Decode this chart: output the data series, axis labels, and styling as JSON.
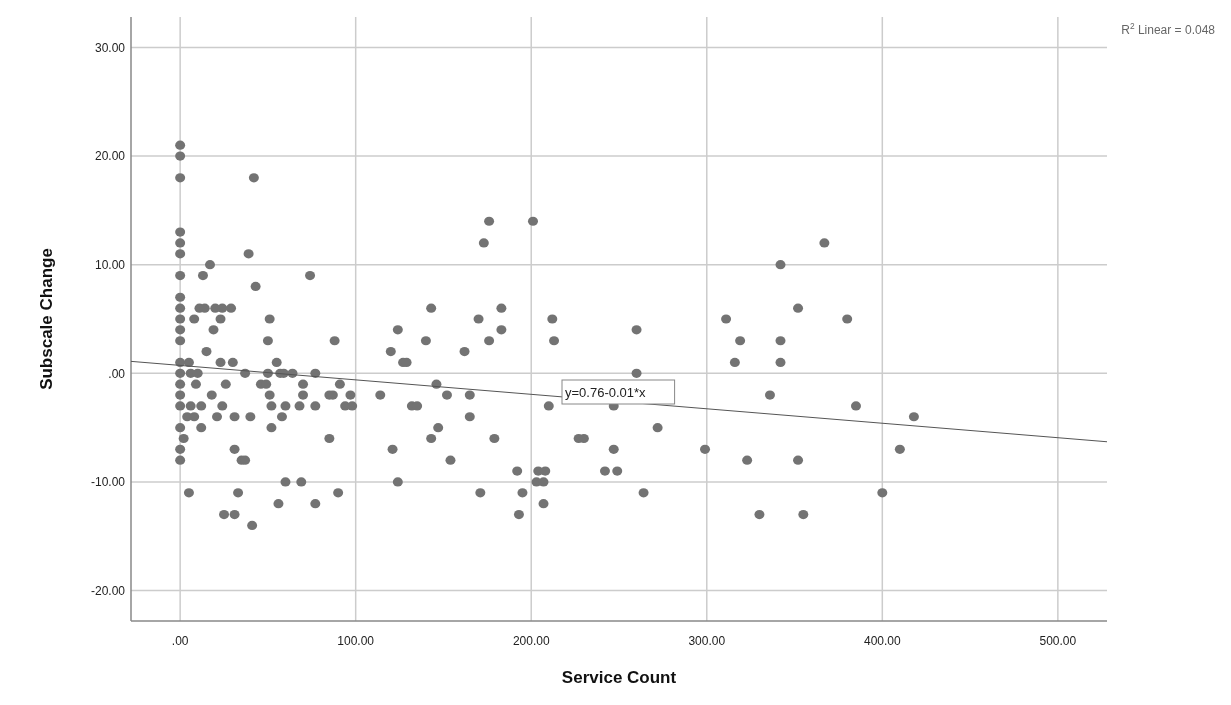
{
  "chart_data": {
    "type": "scatter",
    "xlabel": "Service Count",
    "ylabel": "Subscale Change",
    "xlim": [
      -28,
      528
    ],
    "ylim": [
      -22.8,
      32.8
    ],
    "xticks": [
      {
        "value": 0,
        "label": ".00"
      },
      {
        "value": 100,
        "label": "100.00"
      },
      {
        "value": 200,
        "label": "200.00"
      },
      {
        "value": 300,
        "label": "300.00"
      },
      {
        "value": 400,
        "label": "400.00"
      },
      {
        "value": 500,
        "label": "500.00"
      }
    ],
    "yticks": [
      {
        "value": -20,
        "label": "-20.00"
      },
      {
        "value": -10,
        "label": "-10.00"
      },
      {
        "value": 0,
        "label": ".00"
      },
      {
        "value": 10,
        "label": "10.00"
      },
      {
        "value": 20,
        "label": "20.00"
      },
      {
        "value": 30,
        "label": "30.00"
      }
    ],
    "grid": true,
    "annotations": [
      "y=0.76-0.01*x",
      "R$^{2}$ Linear = 0.048"
    ],
    "series": [
      {
        "color": "#737373",
        "marker": "circle",
        "x": [
          0,
          0,
          0,
          0,
          0,
          0,
          0,
          0,
          0,
          0,
          0,
          0,
          0,
          0,
          0,
          0,
          0,
          0,
          0,
          0,
          2,
          5,
          6,
          10,
          8,
          13,
          17,
          11,
          14,
          20,
          24,
          29,
          23,
          19,
          15,
          23,
          30,
          37,
          9,
          26,
          18,
          6,
          12,
          24,
          4,
          8,
          21,
          31,
          40,
          12,
          31,
          35,
          37,
          5,
          33,
          25,
          31,
          41,
          42,
          39,
          43,
          51,
          50,
          55,
          50,
          57,
          59,
          64,
          77,
          46,
          49,
          70,
          51,
          70,
          52,
          60,
          68,
          77,
          58,
          52,
          85,
          60,
          69,
          56,
          77,
          90,
          74,
          88,
          91,
          85,
          87,
          97,
          94,
          98,
          114,
          121,
          124,
          120,
          124,
          127,
          129,
          132,
          135,
          140,
          143,
          143,
          146,
          147,
          152,
          154,
          162,
          165,
          165,
          170,
          171,
          173,
          176,
          176,
          179,
          183,
          183,
          201,
          212,
          213,
          210,
          227,
          230,
          247,
          247,
          192,
          204,
          208,
          242,
          249,
          203,
          207,
          195,
          207,
          193,
          260,
          260,
          272,
          264,
          299,
          311,
          319,
          316,
          336,
          342,
          342,
          342,
          352,
          323,
          352,
          330,
          355,
          367,
          380,
          385,
          400,
          410,
          418
        ],
        "values": [
          21,
          20,
          18,
          13,
          12,
          11,
          9,
          7,
          6,
          5,
          4,
          3,
          1,
          0,
          -1,
          -2,
          -3,
          -5,
          -7,
          -8,
          -6,
          1,
          0,
          0,
          5,
          9,
          10,
          6,
          6,
          6,
          6,
          6,
          5,
          4,
          2,
          1,
          1,
          0,
          -1,
          -1,
          -2,
          -3,
          -3,
          -3,
          -4,
          -4,
          -4,
          -4,
          -4,
          -5,
          -7,
          -8,
          -8,
          -11,
          -11,
          -13,
          -13,
          -14,
          18,
          11,
          8,
          5,
          3,
          1,
          0,
          0,
          0,
          0,
          0,
          -1,
          -1,
          -1,
          -2,
          -2,
          -3,
          -3,
          -3,
          -3,
          -4,
          -5,
          -6,
          -10,
          -10,
          -12,
          -12,
          -11,
          9,
          3,
          -1,
          -2,
          -2,
          -2,
          -3,
          -3,
          -2,
          -7,
          -10,
          2,
          4,
          1,
          1,
          -3,
          -3,
          3,
          6,
          -6,
          -1,
          -5,
          -2,
          -8,
          2,
          -2,
          -4,
          5,
          -11,
          12,
          14,
          3,
          -6,
          6,
          4,
          14,
          5,
          3,
          -3,
          -6,
          -6,
          -7,
          -3,
          -9,
          -9,
          -9,
          -9,
          -9,
          -10,
          -10,
          -11,
          -12,
          -13,
          4,
          0,
          -5,
          -11,
          -7,
          5,
          3,
          1,
          -2,
          10,
          3,
          1,
          6,
          -8,
          -8,
          -13,
          -13,
          12,
          5,
          -3,
          -11,
          -7,
          -4
        ]
      },
      {
        "type": "line",
        "color": "#555555",
        "line_style": "solid",
        "x": [
          -28,
          528
        ],
        "values": [
          1.1,
          -6.3
        ]
      }
    ]
  }
}
